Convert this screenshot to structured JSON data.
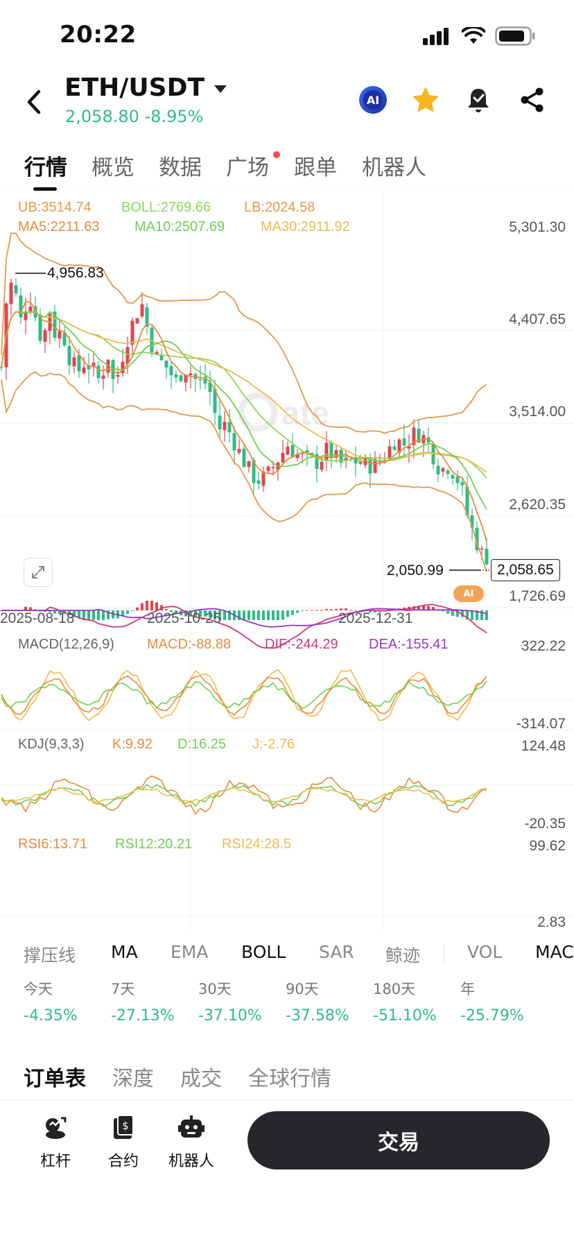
{
  "status": {
    "time": "20:22"
  },
  "header": {
    "pair": "ETH/USDT",
    "price_change": "2,058.80 -8.95%",
    "ai_label": "AI"
  },
  "tabs": [
    {
      "label": "行情",
      "active": true
    },
    {
      "label": "概览"
    },
    {
      "label": "数据"
    },
    {
      "label": "广场",
      "dot": true
    },
    {
      "label": "跟单"
    },
    {
      "label": "机器人"
    }
  ],
  "indicators": {
    "boll": {
      "ub": "UB:3514.74",
      "boll": "BOLL:2769.66",
      "lb": "LB:2024.58"
    },
    "ma": {
      "ma5": "MA5:2211.63",
      "ma10": "MA10:2507.69",
      "ma30": "MA30:2911.92"
    },
    "macd": {
      "name": "MACD(12,26,9)",
      "macd": "MACD:-88.88",
      "dif": "DIF:-244.29",
      "dea": "DEA:-155.41"
    },
    "kdj": {
      "name": "KDJ(9,3,3)",
      "k": "K:9.92",
      "d": "D:16.25",
      "j": "J:-2.76"
    },
    "rsi": {
      "rsi6": "RSI6:13.71",
      "rsi12": "RSI12:20.21",
      "rsi24": "RSI24:28.5"
    }
  },
  "chart_data": {
    "type": "candlestick",
    "price_axis_labels": [
      "5,301.30",
      "4,407.65",
      "3,514.00",
      "2,620.35",
      "1,726.69"
    ],
    "date_labels": [
      "2025-08-18",
      "2025-10-25",
      "2025-12-31"
    ],
    "high_marker": "4,956.83",
    "low_marker": "2,050.99",
    "last_price": "2,058.65",
    "macd_axis": [
      "322.22",
      "-314.07"
    ],
    "kdj_axis": [
      "124.48",
      "-20.35"
    ],
    "rsi_axis": [
      "99.62",
      "2.83"
    ],
    "watermark": "Gate",
    "colors": {
      "up": "#e0464f",
      "down": "#2ebd85",
      "ub_lb": "#e29a4a",
      "boll": "#8ad65c",
      "ma5": "#e98a3b",
      "ma10": "#6fd04f",
      "ma30": "#f2b94a",
      "dif": "#d6347f",
      "dea": "#9b33c9"
    }
  },
  "indicator_tabs": [
    {
      "label": "撑压线",
      "on": false
    },
    {
      "label": "MA",
      "on": true
    },
    {
      "label": "EMA",
      "on": false
    },
    {
      "label": "BOLL",
      "on": true
    },
    {
      "label": "SAR",
      "on": false
    },
    {
      "label": "鲸迹",
      "on": false
    },
    {
      "label": "VOL",
      "on": false
    },
    {
      "label": "MAC",
      "on": true
    }
  ],
  "performance": [
    {
      "label": "今天",
      "value": "-4.35%"
    },
    {
      "label": "7天",
      "value": "-27.13%"
    },
    {
      "label": "30天",
      "value": "-37.10%"
    },
    {
      "label": "90天",
      "value": "-37.58%"
    },
    {
      "label": "180天",
      "value": "-51.10%"
    },
    {
      "label": "年",
      "value": "-25.79%"
    }
  ],
  "sub_tabs": [
    {
      "label": "订单表",
      "active": true
    },
    {
      "label": "深度"
    },
    {
      "label": "成交"
    },
    {
      "label": "全球行情"
    }
  ],
  "bottom": {
    "items": [
      {
        "label": "杠杆",
        "icon": "leverage-icon"
      },
      {
        "label": "合约",
        "icon": "contract-icon"
      },
      {
        "label": "机器人",
        "icon": "robot-icon"
      }
    ],
    "trade_label": "交易"
  }
}
